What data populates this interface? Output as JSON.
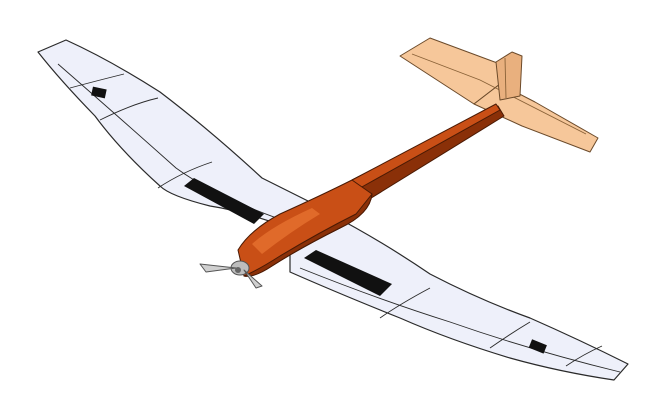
{
  "model": {
    "colors": {
      "background": "#ffffff",
      "wing_fill": "#eef0fa",
      "wing_fill_shade": "#dfe2f3",
      "wing_outline": "#2a2a2a",
      "fuselage_fill": "#c94f16",
      "fuselage_dark": "#8a3008",
      "fuselage_light": "#e06a2a",
      "tail_fill": "#f6c79a",
      "tail_shade": "#e9b07e",
      "servo_hatch": "#111111",
      "propeller": "#d0d0d0",
      "spinner": "#bdbdbd"
    },
    "icons": {
      "wing": "wing-shape",
      "fuselage": "fuselage-shape",
      "tail": "tail-shape",
      "propeller": "propeller-shape"
    }
  }
}
